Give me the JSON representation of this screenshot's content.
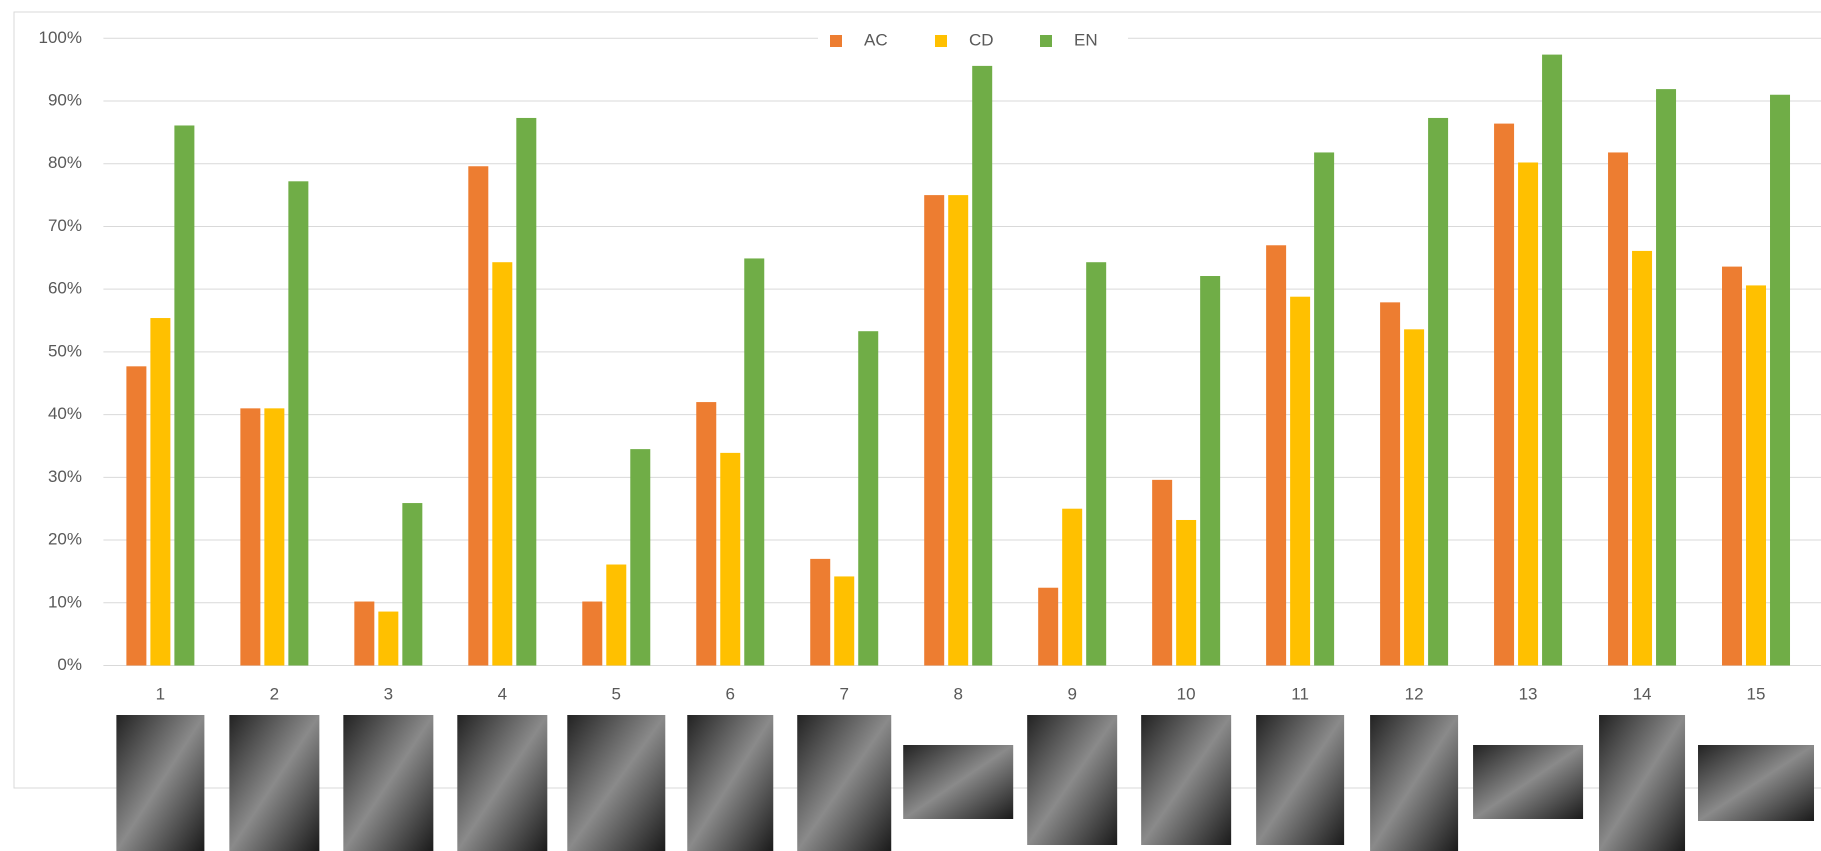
{
  "chart_data": {
    "type": "bar",
    "categories": [
      "1",
      "2",
      "3",
      "4",
      "5",
      "6",
      "7",
      "8",
      "9",
      "10",
      "11",
      "12",
      "13",
      "14",
      "15"
    ],
    "series": [
      {
        "name": "AC",
        "color": "#ed7d31",
        "values": [
          47.7,
          41,
          10.2,
          79.6,
          10.2,
          42,
          17,
          75,
          12.4,
          29.6,
          67,
          57.9,
          86.4,
          81.8,
          63.6
        ]
      },
      {
        "name": "CD",
        "color": "#ffc000",
        "values": [
          55.4,
          41,
          8.6,
          64.3,
          16.1,
          33.9,
          14.2,
          75,
          25,
          23.2,
          58.8,
          53.6,
          80.2,
          66.1,
          60.6
        ]
      },
      {
        "name": "EN",
        "color": "#70ad47",
        "values": [
          86.1,
          77.2,
          25.9,
          87.3,
          34.5,
          64.9,
          53.3,
          95.6,
          64.3,
          62.1,
          81.8,
          87.3,
          97.4,
          91.9,
          91
        ]
      }
    ],
    "ylim": [
      0,
      100
    ],
    "yticks": [
      {
        "value": 0,
        "label": "0%"
      },
      {
        "value": 10,
        "label": "10%"
      },
      {
        "value": 20,
        "label": "20%"
      },
      {
        "value": 30,
        "label": "30%"
      },
      {
        "value": 40,
        "label": "40%"
      },
      {
        "value": 50,
        "label": "50%"
      },
      {
        "value": 60,
        "label": "60%"
      },
      {
        "value": 70,
        "label": "70%"
      },
      {
        "value": 80,
        "label": "80%"
      },
      {
        "value": 90,
        "label": "90%"
      },
      {
        "value": 100,
        "label": "100%"
      }
    ],
    "grid": true,
    "legend": "top"
  }
}
